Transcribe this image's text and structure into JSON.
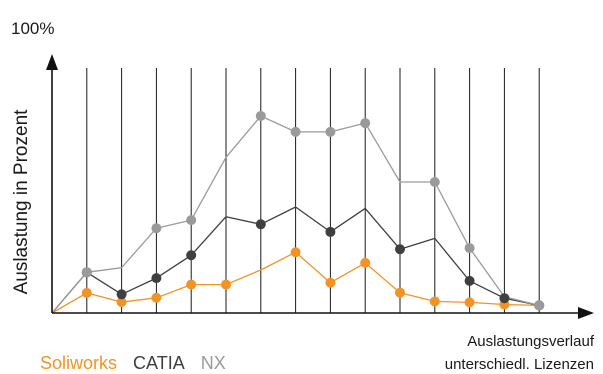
{
  "chart_data": {
    "type": "line",
    "y_top_label": "100%",
    "ylabel": "Auslastung in Prozent",
    "xlabel_lines": [
      "Auslastungsverlauf",
      "unterschiedl. Lizenzen"
    ],
    "ylim": [
      0,
      100
    ],
    "x": [
      0,
      1,
      2,
      3,
      4,
      5,
      6,
      7,
      8,
      9,
      10,
      11,
      12,
      13,
      14
    ],
    "grid": true,
    "series": [
      {
        "name": "Soliworks",
        "color": "#f39325",
        "values": [
          0,
          8.7,
          4.7,
          6.6,
          12.3,
          12.3,
          18.6,
          26.3,
          13.1,
          21.7,
          8.8,
          5.0,
          4.6,
          3.7,
          3.3
        ],
        "markers": [
          false,
          true,
          true,
          true,
          true,
          true,
          false,
          true,
          true,
          true,
          true,
          true,
          true,
          true,
          true
        ]
      },
      {
        "name": "CATIA",
        "color": "#3f3f3f",
        "values": [
          0,
          17.6,
          8.1,
          15.1,
          25.0,
          41.7,
          38.4,
          45.9,
          35.1,
          45.3,
          27.6,
          32.3,
          13.9,
          6.4,
          3.3
        ],
        "markers": [
          false,
          true,
          true,
          true,
          true,
          false,
          true,
          false,
          true,
          false,
          true,
          false,
          true,
          true,
          true
        ]
      },
      {
        "name": "NX",
        "color": "#9a9a9a",
        "values": [
          0,
          17.6,
          19.6,
          36.7,
          40.2,
          67.4,
          85.3,
          78.4,
          78.4,
          82.2,
          56.7,
          56.7,
          28.1,
          7.0,
          3.3
        ],
        "markers": [
          false,
          true,
          false,
          true,
          true,
          false,
          true,
          true,
          true,
          true,
          false,
          true,
          true,
          false,
          true
        ]
      }
    ],
    "legend": {
      "placement": "bottom-left"
    },
    "axis_color": "#111111",
    "grid_color": "#1a1a1a"
  }
}
